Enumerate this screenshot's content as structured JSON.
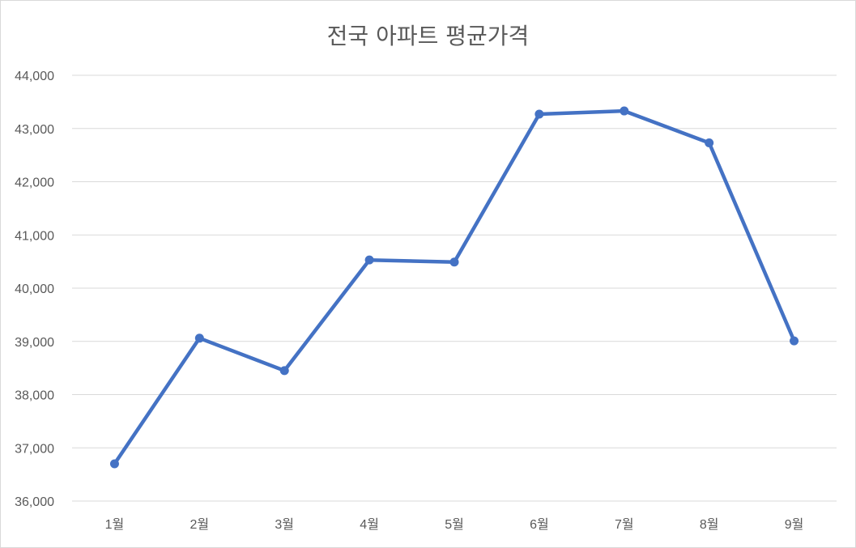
{
  "chart_data": {
    "type": "line",
    "title": "전국 아파트 평균가격",
    "categories": [
      "1월",
      "2월",
      "3월",
      "4월",
      "5월",
      "6월",
      "7월",
      "8월",
      "9월"
    ],
    "series": [
      {
        "values": [
          36700,
          39060,
          38450,
          40530,
          40490,
          43270,
          43330,
          42730,
          39010
        ],
        "color": "#4472c4"
      }
    ],
    "ylim": [
      36000,
      44000
    ],
    "yticks": [
      "36,000",
      "37,000",
      "38,000",
      "39,000",
      "40,000",
      "41,000",
      "42,000",
      "43,000",
      "44,000"
    ],
    "grid": true,
    "legend": "none",
    "colors": {
      "gridline": "#d9d9d9",
      "text": "#595959"
    }
  }
}
